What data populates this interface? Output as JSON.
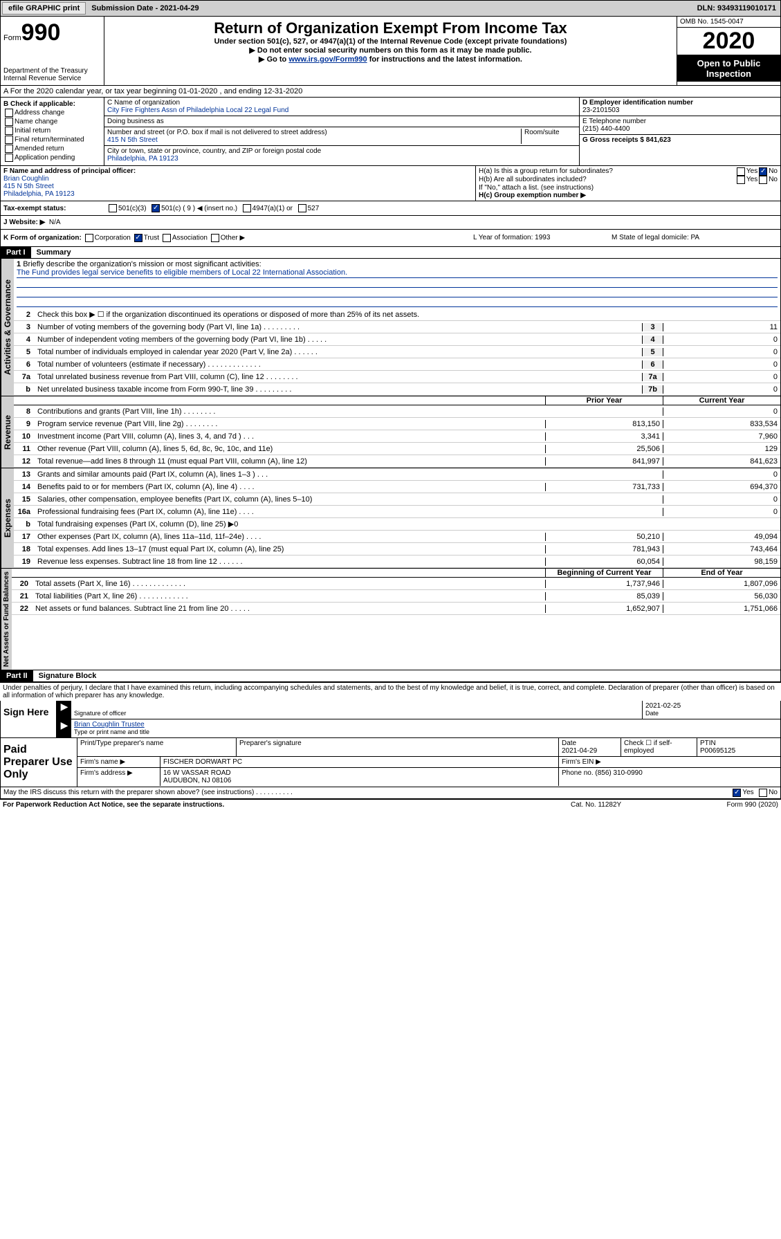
{
  "topbar": {
    "efile_btn": "efile GRAPHIC print",
    "sub_date_label": "Submission Date - 2021-04-29",
    "dln": "DLN: 93493119010171"
  },
  "header": {
    "form_label": "Form",
    "form_num": "990",
    "title": "Return of Organization Exempt From Income Tax",
    "subtitle": "Under section 501(c), 527, or 4947(a)(1) of the Internal Revenue Code (except private foundations)",
    "note1": "▶ Do not enter social security numbers on this form as it may be made public.",
    "note2_pre": "▶ Go to ",
    "note2_link": "www.irs.gov/Form990",
    "note2_post": " for instructions and the latest information.",
    "omb": "OMB No. 1545-0047",
    "year": "2020",
    "open_pub": "Open to Public Inspection",
    "dept": "Department of the Treasury\nInternal Revenue Service"
  },
  "lineA": "A For the 2020 calendar year, or tax year beginning 01-01-2020   , and ending 12-31-2020",
  "colB": {
    "hdr": "B Check if applicable:",
    "opts": [
      "Address change",
      "Name change",
      "Initial return",
      "Final return/terminated",
      "Amended return",
      "Application pending"
    ]
  },
  "colC": {
    "name_lbl": "C Name of organization",
    "name": "City Fire Fighters Assn of Philadelphia Local 22 Legal Fund",
    "dba_lbl": "Doing business as",
    "addr_lbl": "Number and street (or P.O. box if mail is not delivered to street address)",
    "room_lbl": "Room/suite",
    "addr": "415 N 5th Street",
    "city_lbl": "City or town, state or province, country, and ZIP or foreign postal code",
    "city": "Philadelphia, PA  19123"
  },
  "colD": {
    "ein_lbl": "D Employer identification number",
    "ein": "23-2101503",
    "tel_lbl": "E Telephone number",
    "tel": "(215) 440-4400",
    "gross_lbl": "G Gross receipts $ 841,623"
  },
  "officer": {
    "lbl": "F  Name and address of principal officer:",
    "name": "Brian Coughlin",
    "addr1": "415 N 5th Street",
    "addr2": "Philadelphia, PA  19123"
  },
  "hsection": {
    "ha": "H(a)  Is this a group return for subordinates?",
    "hb": "H(b)  Are all subordinates included?",
    "hb_note": "If \"No,\" attach a list. (see instructions)",
    "hc": "H(c)  Group exemption number ▶",
    "yes": "Yes",
    "no": "No"
  },
  "taxstatus": {
    "lbl": "Tax-exempt status:",
    "o1": "501(c)(3)",
    "o2": "501(c) ( 9 ) ◀ (insert no.)",
    "o3": "4947(a)(1) or",
    "o4": "527"
  },
  "website": {
    "lbl": "J   Website: ▶",
    "val": "N/A"
  },
  "kform": {
    "lbl": "K Form of organization:",
    "o1": "Corporation",
    "o2": "Trust",
    "o3": "Association",
    "o4": "Other ▶",
    "l_lbl": "L Year of formation: 1993",
    "m_lbl": "M State of legal domicile: PA"
  },
  "part1": {
    "label": "Part I",
    "title": "Summary"
  },
  "mission": {
    "num": "1",
    "lbl": "Briefly describe the organization's mission or most significant activities:",
    "txt": "The Fund provides legal service benefits to eligible members of Local 22 International Association."
  },
  "gov_lines": [
    {
      "n": "2",
      "t": "Check this box ▶ ☐  if the organization discontinued its operations or disposed of more than 25% of its net assets."
    },
    {
      "n": "3",
      "t": "Number of voting members of the governing body (Part VI, line 1a)   .   .   .   .   .   .   .   .   .",
      "b": "3",
      "v": "11"
    },
    {
      "n": "4",
      "t": "Number of independent voting members of the governing body (Part VI, line 1b)   .   .   .   .   .",
      "b": "4",
      "v": "0"
    },
    {
      "n": "5",
      "t": "Total number of individuals employed in calendar year 2020 (Part V, line 2a)   .   .   .   .   .   .",
      "b": "5",
      "v": "0"
    },
    {
      "n": "6",
      "t": "Total number of volunteers (estimate if necessary)   .   .   .   .   .   .   .   .   .   .   .   .   .",
      "b": "6",
      "v": "0"
    },
    {
      "n": "7a",
      "t": "Total unrelated business revenue from Part VIII, column (C), line 12   .   .   .   .   .   .   .   .",
      "b": "7a",
      "v": "0"
    },
    {
      "n": "b",
      "t": "Net unrelated business taxable income from Form 990-T, line 39   .   .   .   .   .   .   .   .   .",
      "b": "7b",
      "v": "0"
    }
  ],
  "rev_hdr": {
    "c1": "Prior Year",
    "c2": "Current Year"
  },
  "rev_lines": [
    {
      "n": "8",
      "t": "Contributions and grants (Part VIII, line 1h)   .   .   .   .   .   .   .   .",
      "v1": "",
      "v2": "0"
    },
    {
      "n": "9",
      "t": "Program service revenue (Part VIII, line 2g)   .   .   .   .   .   .   .   .",
      "v1": "813,150",
      "v2": "833,534"
    },
    {
      "n": "10",
      "t": "Investment income (Part VIII, column (A), lines 3, 4, and 7d )   .   .   .",
      "v1": "3,341",
      "v2": "7,960"
    },
    {
      "n": "11",
      "t": "Other revenue (Part VIII, column (A), lines 5, 6d, 8c, 9c, 10c, and 11e)",
      "v1": "25,506",
      "v2": "129"
    },
    {
      "n": "12",
      "t": "Total revenue—add lines 8 through 11 (must equal Part VIII, column (A), line 12)",
      "v1": "841,997",
      "v2": "841,623"
    }
  ],
  "exp_lines": [
    {
      "n": "13",
      "t": "Grants and similar amounts paid (Part IX, column (A), lines 1–3 )   .   .   .",
      "v1": "",
      "v2": "0"
    },
    {
      "n": "14",
      "t": "Benefits paid to or for members (Part IX, column (A), line 4)   .   .   .   .",
      "v1": "731,733",
      "v2": "694,370"
    },
    {
      "n": "15",
      "t": "Salaries, other compensation, employee benefits (Part IX, column (A), lines 5–10)",
      "v1": "",
      "v2": "0"
    },
    {
      "n": "16a",
      "t": "Professional fundraising fees (Part IX, column (A), line 11e)   .   .   .   .",
      "v1": "",
      "v2": "0"
    },
    {
      "n": "b",
      "t": "Total fundraising expenses (Part IX, column (D), line 25) ▶0",
      "v1": "",
      "v2": "",
      "grey": true
    },
    {
      "n": "17",
      "t": "Other expenses (Part IX, column (A), lines 11a–11d, 11f–24e)   .   .   .   .",
      "v1": "50,210",
      "v2": "49,094"
    },
    {
      "n": "18",
      "t": "Total expenses. Add lines 13–17 (must equal Part IX, column (A), line 25)",
      "v1": "781,943",
      "v2": "743,464"
    },
    {
      "n": "19",
      "t": "Revenue less expenses. Subtract line 18 from line 12   .   .   .   .   .   .",
      "v1": "60,054",
      "v2": "98,159"
    }
  ],
  "na_hdr": {
    "c1": "Beginning of Current Year",
    "c2": "End of Year"
  },
  "na_lines": [
    {
      "n": "20",
      "t": "Total assets (Part X, line 16)   .   .   .   .   .   .   .   .   .   .   .   .   .",
      "v1": "1,737,946",
      "v2": "1,807,096"
    },
    {
      "n": "21",
      "t": "Total liabilities (Part X, line 26)   .   .   .   .   .   .   .   .   .   .   .   .",
      "v1": "85,039",
      "v2": "56,030"
    },
    {
      "n": "22",
      "t": "Net assets or fund balances. Subtract line 21 from line 20   .   .   .   .   .",
      "v1": "1,652,907",
      "v2": "1,751,066"
    }
  ],
  "part2": {
    "label": "Part II",
    "title": "Signature Block"
  },
  "perjury": "Under penalties of perjury, I declare that I have examined this return, including accompanying schedules and statements, and to the best of my knowledge and belief, it is true, correct, and complete. Declaration of preparer (other than officer) is based on all information of which preparer has any knowledge.",
  "sign": {
    "here": "Sign Here",
    "sig_lbl": "Signature of officer",
    "date": "2021-02-25",
    "date_lbl": "Date",
    "name": "Brian Coughlin  Trustee",
    "name_lbl": "Type or print name and title"
  },
  "prep": {
    "title": "Paid Preparer Use Only",
    "r1": {
      "c1": "Print/Type preparer's name",
      "c2": "Preparer's signature",
      "c3": "Date\n2021-04-29",
      "c4": "Check ☐ if self-employed",
      "c5": "PTIN\nP00695125"
    },
    "r2": {
      "c1": "Firm's name    ▶",
      "c2": "FISCHER DORWART PC",
      "c3": "Firm's EIN ▶"
    },
    "r3": {
      "c1": "Firm's address ▶",
      "c2": "16 W VASSAR ROAD",
      "c3": "Phone no. (856) 310-0990"
    },
    "r3b": "AUDUBON, NJ  08106"
  },
  "discuss": {
    "t": "May the IRS discuss this return with the preparer shown above? (see instructions)   .   .   .   .   .   .   .   .   .   .",
    "yes": "Yes",
    "no": "No"
  },
  "footer": {
    "l": "For Paperwork Reduction Act Notice, see the separate instructions.",
    "m": "Cat. No. 11282Y",
    "r": "Form 990 (2020)"
  },
  "vert": {
    "gov": "Activities & Governance",
    "rev": "Revenue",
    "exp": "Expenses",
    "na": "Net Assets or Fund Balances"
  }
}
